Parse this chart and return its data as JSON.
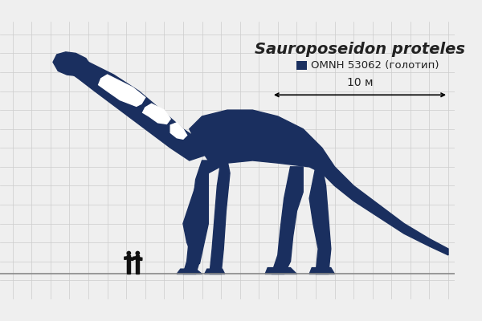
{
  "title": "Sauroposeidon proteles",
  "legend_label": "OMNH 53062 (голотип)",
  "scale_label": "10 м",
  "dino_color": "#1a2f5f",
  "human_color": "#111111",
  "bg_color": "#efefef",
  "grid_color": "#cccccc",
  "text_color": "#222222",
  "title_fontsize": 14,
  "legend_fontsize": 9.5,
  "scale_fontsize": 10,
  "xlim": [
    0,
    36
  ],
  "ylim": [
    -2,
    20
  ]
}
